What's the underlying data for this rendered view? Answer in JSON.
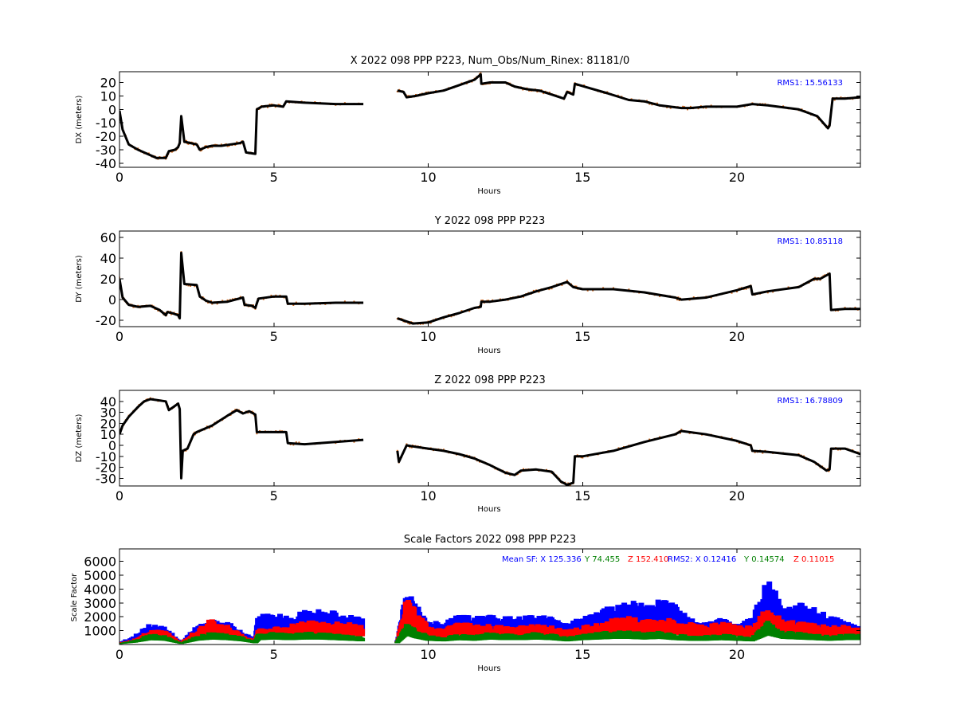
{
  "chart_data": [
    {
      "type": "line",
      "title": "X 2022 098 PPP  P223, Num_Obs/Num_Rinex: 81181/0",
      "xlabel": "Hours",
      "ylabel": "DX (meters)",
      "xlim": [
        0,
        24
      ],
      "ylim": [
        -43,
        28
      ],
      "xticks": [
        0,
        5,
        10,
        15,
        20
      ],
      "yticks": [
        -40,
        -30,
        -20,
        -10,
        0,
        10,
        20
      ],
      "colors": {
        "line": "#000000",
        "scatter": "#d2691e"
      },
      "annotation": {
        "text": "RMS1: 15.56133",
        "color": "#0000ff"
      },
      "series": [
        {
          "x": [
            0,
            0.1,
            0.3,
            0.6,
            0.9,
            1.2,
            1.5,
            1.6,
            1.8,
            1.9,
            1.95,
            2.0,
            2.1,
            2.3,
            2.5,
            2.6,
            2.8,
            3.0,
            3.3,
            3.6,
            3.9,
            4.0,
            4.1,
            4.4,
            4.45,
            4.6,
            5.0,
            5.3,
            5.4,
            6.0,
            7.0,
            7.9
          ],
          "y": [
            -1,
            -15,
            -26,
            -30,
            -33,
            -36,
            -36,
            -31,
            -30,
            -28,
            -25,
            -5,
            -24,
            -25,
            -26,
            -30,
            -28,
            -27,
            -27,
            -26,
            -25,
            -24,
            -32,
            -33,
            0,
            2,
            3,
            2,
            6,
            5,
            4,
            4
          ]
        },
        {
          "x": [
            9.0,
            9.2,
            9.3,
            9.6,
            10.0,
            10.5,
            11.0,
            11.5,
            11.7,
            11.72,
            12.0,
            12.5,
            12.8,
            13.2,
            13.6,
            14.0,
            14.4,
            14.5,
            14.7,
            14.75,
            15.2,
            15.8,
            16.5,
            17.0,
            17.5,
            18.2,
            18.5,
            19.0,
            20.0,
            20.5,
            21.0,
            22.0,
            22.6,
            22.95,
            23.0,
            23.1,
            23.5,
            24.0
          ],
          "y": [
            14,
            13,
            9,
            10,
            12,
            14,
            18,
            22,
            26,
            19,
            20,
            20,
            17,
            15,
            14,
            11,
            8,
            13,
            11,
            19,
            16,
            12,
            7,
            6,
            3,
            1,
            1,
            2,
            2,
            4,
            3,
            0,
            -5,
            -14,
            -12,
            8,
            8,
            9
          ]
        }
      ]
    },
    {
      "type": "line",
      "title": "Y 2022 098 PPP  P223",
      "xlabel": "Hours",
      "ylabel": "DY (meters)",
      "xlim": [
        0,
        24
      ],
      "ylim": [
        -26,
        66
      ],
      "xticks": [
        0,
        5,
        10,
        15,
        20
      ],
      "yticks": [
        -20,
        0,
        20,
        40,
        60
      ],
      "colors": {
        "line": "#000000",
        "scatter": "#d2691e"
      },
      "annotation": {
        "text": "RMS1: 10.85118",
        "color": "#0000ff"
      },
      "series": [
        {
          "x": [
            0,
            0.1,
            0.3,
            0.6,
            1.0,
            1.3,
            1.5,
            1.55,
            1.7,
            1.9,
            1.95,
            2.0,
            2.1,
            2.5,
            2.6,
            2.8,
            3.0,
            3.5,
            4.0,
            4.05,
            4.3,
            4.4,
            4.5,
            5.0,
            5.4,
            5.45,
            6.0,
            7.0,
            7.9
          ],
          "y": [
            20,
            2,
            -5,
            -7,
            -6,
            -10,
            -15,
            -12,
            -13,
            -15,
            -18,
            45,
            15,
            14,
            3,
            -1,
            -3,
            -2,
            2,
            -5,
            -6,
            -8,
            1,
            3,
            3,
            -4,
            -4,
            -3,
            -3
          ]
        },
        {
          "x": [
            9.0,
            9.2,
            9.5,
            10.0,
            10.5,
            11.0,
            11.5,
            11.7,
            11.72,
            12.0,
            12.5,
            13.0,
            13.5,
            14.0,
            14.5,
            14.7,
            15.0,
            16.0,
            17.0,
            18.0,
            18.2,
            19.0,
            20.0,
            20.45,
            20.5,
            21.0,
            22.0,
            22.5,
            22.7,
            23.0,
            23.05,
            23.5,
            24.0
          ],
          "y": [
            -18,
            -20,
            -23,
            -22,
            -17,
            -13,
            -8,
            -7,
            -2,
            -2,
            0,
            3,
            8,
            12,
            17,
            12,
            10,
            10,
            7,
            2,
            0,
            2,
            9,
            13,
            5,
            8,
            12,
            20,
            20,
            25,
            -10,
            -9,
            -9
          ]
        }
      ]
    },
    {
      "type": "line",
      "title": "Z 2022 098 PPP  P223",
      "xlabel": "Hours",
      "ylabel": "DZ (meters)",
      "xlim": [
        0,
        24
      ],
      "ylim": [
        -37,
        50
      ],
      "xticks": [
        0,
        5,
        10,
        15,
        20
      ],
      "yticks": [
        -30,
        -20,
        -10,
        0,
        10,
        20,
        30,
        40
      ],
      "colors": {
        "line": "#000000",
        "scatter": "#d2691e"
      },
      "annotation": {
        "text": "RMS1: 16.78809",
        "color": "#0000ff"
      },
      "series": [
        {
          "x": [
            0,
            0.1,
            0.3,
            0.6,
            0.8,
            1.0,
            1.5,
            1.6,
            1.7,
            1.9,
            1.95,
            2.0,
            2.05,
            2.2,
            2.4,
            2.5,
            3.0,
            3.5,
            3.8,
            4.0,
            4.2,
            4.4,
            4.45,
            5.0,
            5.4,
            5.45,
            6.0,
            7.0,
            7.9
          ],
          "y": [
            10,
            18,
            26,
            35,
            40,
            42,
            40,
            32,
            34,
            38,
            33,
            -30,
            -5,
            -3,
            10,
            12,
            18,
            27,
            32,
            29,
            31,
            28,
            12,
            12,
            12,
            2,
            1,
            3,
            5
          ]
        },
        {
          "x": [
            9.0,
            9.05,
            9.3,
            9.5,
            10.0,
            10.5,
            11.0,
            11.5,
            12.0,
            12.5,
            12.8,
            13.0,
            13.5,
            14.0,
            14.3,
            14.5,
            14.7,
            14.75,
            15.0,
            16.0,
            17.0,
            18.0,
            18.2,
            19.0,
            20.0,
            20.45,
            20.5,
            21.0,
            22.0,
            22.5,
            22.9,
            23.0,
            23.05,
            23.5,
            24.0
          ],
          "y": [
            -5,
            -15,
            0,
            -1,
            -3,
            -5,
            -8,
            -12,
            -18,
            -25,
            -27,
            -23,
            -22,
            -24,
            -33,
            -36,
            -34,
            -10,
            -10,
            -5,
            3,
            10,
            13,
            10,
            4,
            0,
            -5,
            -6,
            -9,
            -15,
            -23,
            -22,
            -3,
            -3,
            -8
          ]
        }
      ]
    },
    {
      "type": "scatter",
      "title": "Scale Factors 2022 098 PPP  P223",
      "xlabel": "Hours",
      "ylabel": "Scale Factor",
      "xlim": [
        0,
        24
      ],
      "ylim": [
        0,
        6900
      ],
      "xticks": [
        0,
        5,
        10,
        15,
        20
      ],
      "yticks": [
        1000,
        2000,
        3000,
        4000,
        5000,
        6000
      ],
      "annotations": [
        {
          "text": "Mean SF: X 125.336",
          "color": "#0000ff"
        },
        {
          "text": "Y  74.455",
          "color": "#008000"
        },
        {
          "text": "Z  152.410",
          "color": "#ff0000"
        },
        {
          "text": "RMS2: X  0.12416",
          "color": "#0000ff"
        },
        {
          "text": "Y  0.14574",
          "color": "#008000"
        },
        {
          "text": "Z  0.11015",
          "color": "#ff0000"
        }
      ],
      "series": [
        {
          "name": "X",
          "color": "#0000ff",
          "x": [
            0,
            0.5,
            1.0,
            1.5,
            2.0,
            2.5,
            3.0,
            3.5,
            4.0,
            4.4,
            4.5,
            5.0,
            5.5,
            6.0,
            6.5,
            7.0,
            7.5,
            7.9,
            9.0,
            9.3,
            9.6,
            10.0,
            10.5,
            11.0,
            11.5,
            12.0,
            12.5,
            13.0,
            13.5,
            14.0,
            14.5,
            15.0,
            15.5,
            16.0,
            16.5,
            17.0,
            17.5,
            18.0,
            18.5,
            19.0,
            19.5,
            20.0,
            20.5,
            21.0,
            21.5,
            22.0,
            22.5,
            23.0,
            23.5,
            24.0
          ],
          "y": [
            150,
            600,
            1400,
            1100,
            200,
            1300,
            1700,
            1500,
            800,
            400,
            2000,
            2000,
            1900,
            2200,
            2300,
            2200,
            1900,
            1700,
            300,
            3500,
            2600,
            1600,
            1400,
            2000,
            1800,
            1900,
            1800,
            1800,
            1900,
            1800,
            1400,
            1800,
            2100,
            2600,
            2800,
            2700,
            3000,
            2600,
            1700,
            1500,
            1700,
            1500,
            1700,
            4500,
            2500,
            2700,
            2500,
            2000,
            1500,
            1400
          ]
        },
        {
          "name": "Z",
          "color": "#ff0000",
          "x": [
            0,
            0.5,
            1.0,
            1.5,
            2.0,
            2.5,
            3.0,
            3.5,
            4.0,
            4.4,
            4.5,
            5.0,
            5.5,
            6.0,
            6.5,
            7.0,
            7.5,
            7.9,
            9.0,
            9.3,
            9.6,
            10.0,
            10.5,
            11.0,
            11.5,
            12.0,
            12.5,
            13.0,
            13.5,
            14.0,
            14.5,
            15.0,
            15.5,
            16.0,
            16.5,
            17.0,
            17.5,
            18.0,
            18.5,
            19.0,
            19.5,
            20.0,
            20.5,
            21.0,
            21.5,
            22.0,
            22.5,
            23.0,
            23.5,
            24.0
          ],
          "y": [
            100,
            400,
            1000,
            900,
            150,
            1000,
            1700,
            1300,
            600,
            300,
            1000,
            1100,
            1300,
            1500,
            1600,
            1500,
            1400,
            1300,
            250,
            3000,
            2200,
            1200,
            1000,
            1500,
            1300,
            1300,
            1200,
            1200,
            1300,
            1200,
            1000,
            1200,
            1400,
            1700,
            1800,
            1700,
            1800,
            1600,
            1400,
            1300,
            1500,
            1300,
            1200,
            2500,
            1700,
            1500,
            1400,
            1200,
            1300,
            1100
          ]
        },
        {
          "name": "Y",
          "color": "#008000",
          "x": [
            0,
            0.5,
            1.0,
            1.5,
            2.0,
            2.5,
            3.0,
            3.5,
            4.0,
            4.4,
            4.5,
            5.0,
            5.5,
            6.0,
            6.5,
            7.0,
            7.5,
            7.9,
            9.0,
            9.3,
            9.6,
            10.0,
            10.5,
            11.0,
            11.5,
            12.0,
            12.5,
            13.0,
            13.5,
            14.0,
            14.5,
            15.0,
            15.5,
            16.0,
            16.5,
            17.0,
            17.5,
            18.0,
            18.5,
            19.0,
            19.5,
            20.0,
            20.5,
            21.0,
            21.5,
            22.0,
            22.5,
            23.0,
            23.5,
            24.0
          ],
          "y": [
            80,
            300,
            700,
            600,
            100,
            600,
            800,
            700,
            500,
            200,
            700,
            800,
            700,
            800,
            800,
            700,
            600,
            500,
            200,
            1500,
            1000,
            600,
            500,
            700,
            600,
            800,
            700,
            700,
            800,
            700,
            500,
            700,
            800,
            900,
            900,
            800,
            900,
            700,
            600,
            600,
            700,
            600,
            500,
            1500,
            900,
            800,
            700,
            600,
            700,
            700
          ]
        }
      ]
    }
  ]
}
